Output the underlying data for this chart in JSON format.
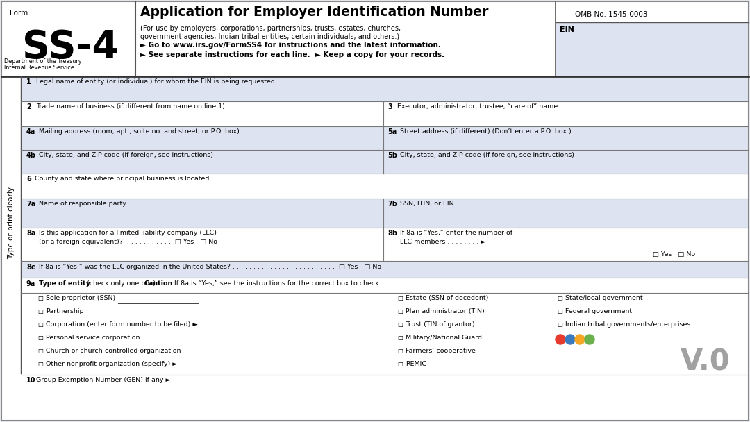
{
  "bg_color": "#e8eaf0",
  "form_bg": "#ffffff",
  "row_alt_color": "#dde3f0",
  "title": "Application for Employer Identification Number",
  "form_label": "Form",
  "form_number": "SS-4",
  "omb": "OMB No. 1545-0003",
  "ein_label": "EIN",
  "dept": "Department of the Treasury\nInternal Revenue Service",
  "sidebar_text": "Type or print clearly.",
  "watermark_text": "V.0",
  "dot_colors": [
    "#e63a2e",
    "#3a7abf",
    "#f5a623",
    "#6ab04c"
  ],
  "entity_types_left": [
    "Sole proprietor (SSN)",
    "Partnership",
    "Corporation (enter form number to be filed) ►",
    "Personal service corporation",
    "Church or church-controlled organization",
    "Other nonprofit organization (specify) ►"
  ],
  "entity_types_right": [
    "Estate (SSN of decedent)",
    "Plan administrator (TIN)",
    "Trust (TIN of grantor)",
    "Military/National Guard",
    "Farmers’ cooperative",
    "REMIC"
  ],
  "entity_types_far_right": [
    "State/local government",
    "Federal government",
    "Indian tribal governments/enterprises"
  ],
  "bottom_label": "Group Exemption Number (GEN) if any ►"
}
